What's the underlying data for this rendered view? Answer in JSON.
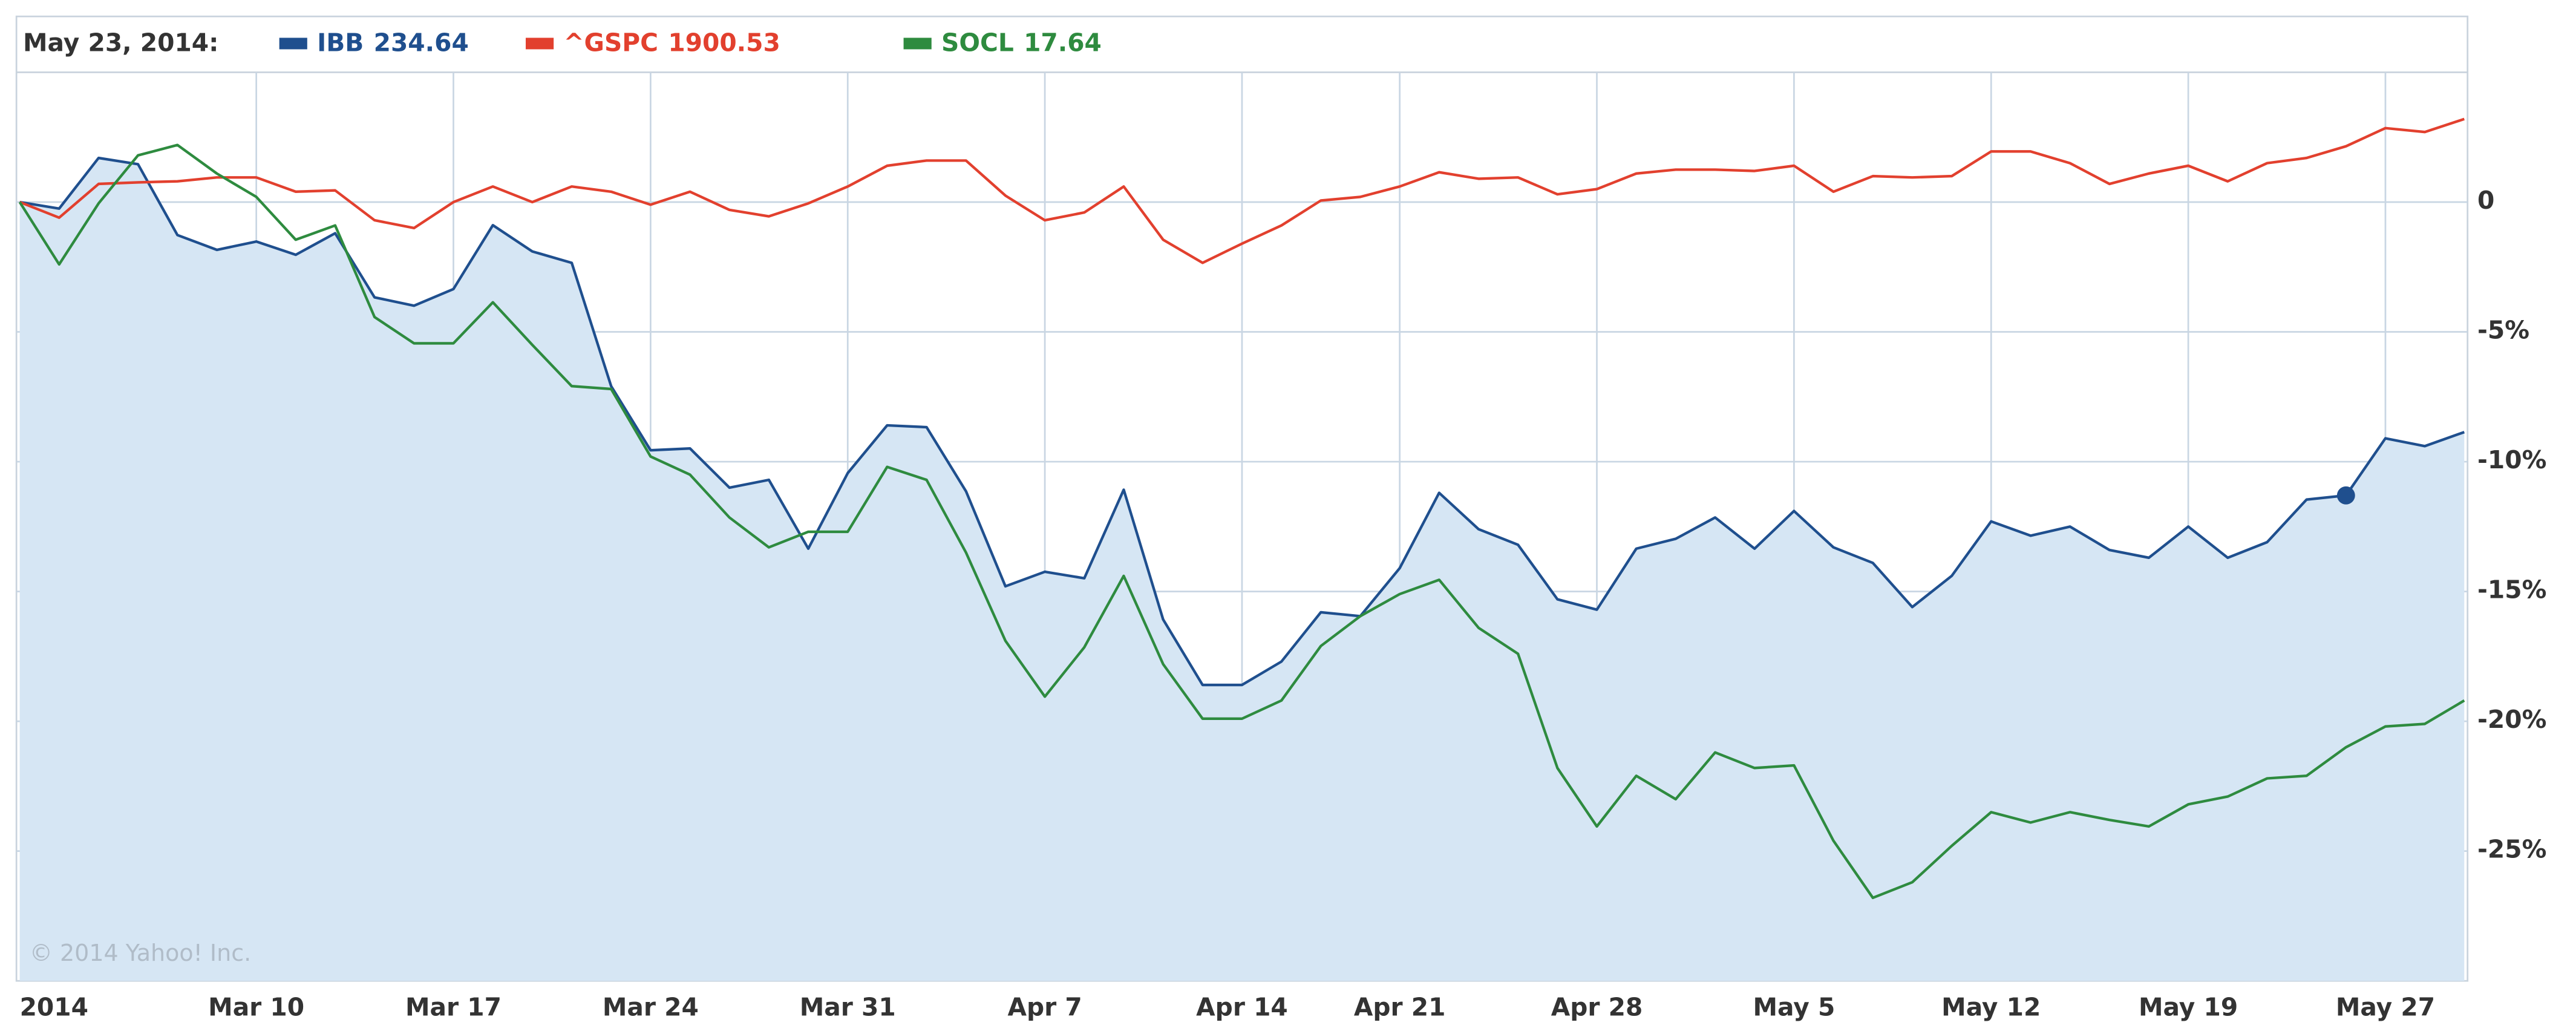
{
  "chart_data": {
    "type": "line",
    "date_label": "May 23, 2014:",
    "watermark": "© 2014 Yahoo! Inc.",
    "categories": [
      "2014",
      null,
      null,
      null,
      null,
      null,
      "Mar 10",
      null,
      null,
      null,
      null,
      "Mar 17",
      null,
      null,
      null,
      null,
      "Mar 24",
      null,
      null,
      null,
      null,
      "Mar 31",
      null,
      null,
      null,
      null,
      "Apr 7",
      null,
      null,
      null,
      null,
      "Apr 14",
      null,
      null,
      null,
      "Apr 21",
      null,
      null,
      null,
      null,
      "Apr 28",
      null,
      null,
      null,
      null,
      "May 5",
      null,
      null,
      null,
      null,
      "May 12",
      null,
      null,
      null,
      null,
      "May 19",
      null,
      null,
      null,
      null,
      "May 27",
      null,
      null
    ],
    "series": [
      {
        "name": "IBB",
        "quote": 234.64,
        "color": "#1f4f8e",
        "area": true,
        "area_color": "#d6e6f4",
        "values": [
          0,
          -0.25,
          1.7,
          1.46,
          -1.27,
          -1.84,
          -1.52,
          -2.03,
          -1.2,
          -3.67,
          -3.99,
          -3.35,
          -0.89,
          -1.9,
          -2.34,
          -7.09,
          -9.56,
          -9.49,
          -11.0,
          -10.7,
          -13.35,
          -10.44,
          -8.6,
          -8.67,
          -11.14,
          -14.8,
          -14.24,
          -14.49,
          -11.08,
          -16.08,
          -18.6,
          -18.6,
          -17.7,
          -15.8,
          -15.95,
          -14.1,
          -11.2,
          -12.6,
          -13.2,
          -15.3,
          -15.7,
          -13.35,
          -12.97,
          -12.15,
          -13.35,
          -11.9,
          -13.3,
          -13.9,
          -15.6,
          -14.4,
          -12.3,
          -12.85,
          -12.5,
          -13.4,
          -13.7,
          -12.5,
          -13.7,
          -13.1,
          -11.46,
          -11.3,
          -9.1,
          -9.4,
          -8.86
        ]
      },
      {
        "name": "^GSPC",
        "quote": 1900.53,
        "color": "#e2402e",
        "values": [
          0,
          -0.6,
          0.7,
          0.76,
          0.8,
          0.95,
          0.95,
          0.4,
          0.45,
          -0.7,
          -1.0,
          0,
          0.6,
          0,
          0.6,
          0.4,
          -0.1,
          0.4,
          -0.3,
          -0.55,
          -0.05,
          0.6,
          1.4,
          1.6,
          1.6,
          0.25,
          -0.7,
          -0.4,
          0.6,
          -1.45,
          -2.34,
          -1.6,
          -0.9,
          0.06,
          0.2,
          0.6,
          1.15,
          0.9,
          0.95,
          0.3,
          0.5,
          1.1,
          1.25,
          1.25,
          1.2,
          1.4,
          0.4,
          1.0,
          0.95,
          1.0,
          1.95,
          1.95,
          1.5,
          0.7,
          1.1,
          1.4,
          0.8,
          1.5,
          1.7,
          2.15,
          2.85,
          2.7,
          3.2
        ]
      },
      {
        "name": "SOCL",
        "quote": 17.64,
        "color": "#2e8b3f",
        "values": [
          0,
          -2.4,
          -0.05,
          1.8,
          2.2,
          1.1,
          0.2,
          -1.45,
          -0.9,
          -4.43,
          -5.44,
          -5.44,
          -3.86,
          -5.5,
          -7.09,
          -7.2,
          -9.8,
          -10.5,
          -12.15,
          -13.3,
          -12.7,
          -12.7,
          -10.2,
          -10.7,
          -13.5,
          -16.9,
          -19.05,
          -17.15,
          -14.4,
          -17.8,
          -19.9,
          -19.9,
          -19.2,
          -17.1,
          -15.95,
          -15.1,
          -14.55,
          -16.4,
          -17.4,
          -21.8,
          -24.05,
          -22.1,
          -23.0,
          -21.2,
          -21.8,
          -21.7,
          -24.6,
          -26.8,
          -26.2,
          -24.8,
          -23.5,
          -23.9,
          -23.5,
          -23.8,
          -24.05,
          -23.2,
          -22.9,
          -22.2,
          -22.1,
          -21.0,
          -20.2,
          -20.1,
          -19.2
        ]
      }
    ],
    "highlight_index": 59,
    "ylim": [
      -30,
      5
    ],
    "yticks": [
      0,
      {
        "value": -5,
        "label": "-5%"
      },
      {
        "value": -10,
        "label": "-10%"
      },
      {
        "value": -15,
        "label": "-15%"
      },
      {
        "value": -20,
        "label": "-20%"
      },
      {
        "value": -25,
        "label": "-25%"
      }
    ],
    "grid": true
  }
}
